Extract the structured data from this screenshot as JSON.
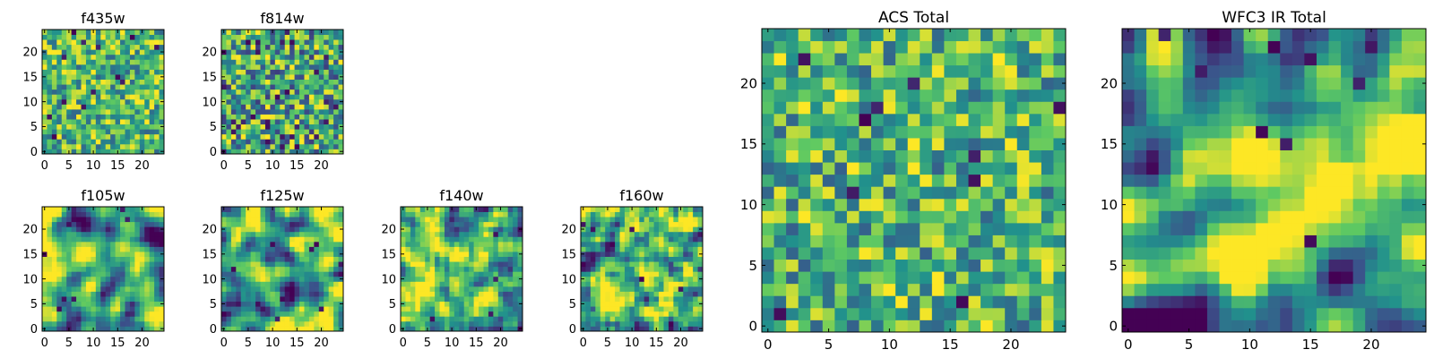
{
  "figure": {
    "colormap": "viridis",
    "colormap_stops": [
      "#440154",
      "#3b528b",
      "#21918c",
      "#5ec962",
      "#fde725"
    ]
  },
  "chart_data": [
    {
      "type": "heatmap",
      "title": "f435w",
      "grid_size": 25,
      "xlim": [
        0,
        24
      ],
      "ylim": [
        0,
        24
      ],
      "xticks": [
        0,
        5,
        10,
        15,
        20
      ],
      "yticks": [
        0,
        5,
        10,
        15,
        20
      ],
      "value_range": [
        0,
        1
      ],
      "seed": 11,
      "smoothing": 0,
      "mean": 0.68,
      "contrast": 0.2,
      "dark_spots": 0.03
    },
    {
      "type": "heatmap",
      "title": "f814w",
      "grid_size": 25,
      "xlim": [
        0,
        24
      ],
      "ylim": [
        0,
        24
      ],
      "xticks": [
        0,
        5,
        10,
        15,
        20
      ],
      "yticks": [
        0,
        5,
        10,
        15,
        20
      ],
      "value_range": [
        0,
        1
      ],
      "seed": 23,
      "smoothing": 0,
      "mean": 0.6,
      "contrast": 0.25,
      "dark_spots": 0.04
    },
    {
      "type": "heatmap",
      "title": "f105w",
      "grid_size": 25,
      "xlim": [
        0,
        24
      ],
      "ylim": [
        0,
        24
      ],
      "xticks": [
        0,
        5,
        10,
        15,
        20
      ],
      "yticks": [
        0,
        5,
        10,
        15,
        20
      ],
      "value_range": [
        0,
        1
      ],
      "seed": 37,
      "smoothing": 2,
      "mean": 0.6,
      "contrast": 0.28,
      "dark_spots": 0.01
    },
    {
      "type": "heatmap",
      "title": "f125w",
      "grid_size": 25,
      "xlim": [
        0,
        24
      ],
      "ylim": [
        0,
        24
      ],
      "xticks": [
        0,
        5,
        10,
        15,
        20
      ],
      "yticks": [
        0,
        5,
        10,
        15,
        20
      ],
      "value_range": [
        0,
        1
      ],
      "seed": 41,
      "smoothing": 2,
      "mean": 0.62,
      "contrast": 0.28,
      "dark_spots": 0.01
    },
    {
      "type": "heatmap",
      "title": "f140w",
      "grid_size": 25,
      "xlim": [
        0,
        24
      ],
      "ylim": [
        0,
        24
      ],
      "xticks": [
        0,
        5,
        10,
        15,
        20
      ],
      "yticks": [
        0,
        5,
        10,
        15,
        20
      ],
      "value_range": [
        0,
        1
      ],
      "seed": 53,
      "smoothing": 1,
      "mean": 0.66,
      "contrast": 0.24,
      "dark_spots": 0.01
    },
    {
      "type": "heatmap",
      "title": "f160w",
      "grid_size": 25,
      "xlim": [
        0,
        24
      ],
      "ylim": [
        0,
        24
      ],
      "xticks": [
        0,
        5,
        10,
        15,
        20
      ],
      "yticks": [
        0,
        5,
        10,
        15,
        20
      ],
      "value_range": [
        0,
        1
      ],
      "seed": 67,
      "smoothing": 1,
      "mean": 0.66,
      "contrast": 0.26,
      "dark_spots": 0.01
    },
    {
      "type": "heatmap",
      "title": "ACS Total",
      "grid_size": 25,
      "xlim": [
        0,
        24
      ],
      "ylim": [
        0,
        24
      ],
      "xticks": [
        0,
        5,
        10,
        15,
        20
      ],
      "yticks": [
        0,
        5,
        10,
        15,
        20
      ],
      "value_range": [
        0,
        1
      ],
      "seed": 79,
      "smoothing": 0,
      "mean": 0.65,
      "contrast": 0.2,
      "dark_spots": 0.025
    },
    {
      "type": "heatmap",
      "title": "WFC3 IR Total",
      "grid_size": 25,
      "xlim": [
        0,
        24
      ],
      "ylim": [
        0,
        24
      ],
      "xticks": [
        0,
        5,
        10,
        15,
        20
      ],
      "yticks": [
        0,
        5,
        10,
        15,
        20
      ],
      "value_range": [
        0,
        1
      ],
      "seed": 97,
      "smoothing": 2,
      "mean": 0.6,
      "contrast": 0.3,
      "dark_spots": 0.015,
      "bright_blob": true
    }
  ]
}
